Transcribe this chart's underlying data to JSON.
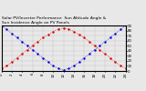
{
  "title_line1": "Solar PV/Inverter Performance  Sun Altitude Angle &",
  "title_line2": "Sun Incidence Angle on PV Panels",
  "x_values": [
    0,
    1,
    2,
    3,
    4,
    5,
    6,
    7,
    8,
    9,
    10,
    11,
    12,
    13,
    14,
    15,
    16,
    17,
    18,
    19,
    20,
    21,
    22,
    23,
    24
  ],
  "blue_values": [
    90,
    82,
    74,
    66,
    58,
    50,
    42,
    34,
    26,
    18,
    10,
    5,
    2,
    5,
    10,
    18,
    26,
    34,
    42,
    50,
    58,
    66,
    74,
    82,
    90
  ],
  "red_values": [
    5,
    10,
    18,
    26,
    34,
    42,
    50,
    58,
    66,
    72,
    78,
    83,
    85,
    83,
    78,
    72,
    66,
    58,
    50,
    42,
    34,
    26,
    18,
    10,
    5
  ],
  "blue_color": "#0000dd",
  "red_color": "#dd0000",
  "background_color": "#e8e8e8",
  "grid_color": "#999999",
  "ylim": [
    0,
    90
  ],
  "xlim": [
    0,
    24
  ],
  "yticks": [
    0,
    10,
    20,
    30,
    40,
    50,
    60,
    70,
    80,
    90
  ],
  "xtick_vals": [
    0,
    2,
    4,
    6,
    8,
    10,
    12,
    14,
    16,
    18,
    20,
    22,
    24
  ],
  "xtick_labels": [
    "0",
    "2",
    "4",
    "6",
    "8",
    "10",
    "12",
    "14",
    "16",
    "18",
    "20",
    "22",
    "24"
  ],
  "title_fontsize": 3.2,
  "tick_fontsize": 2.8,
  "linewidth": 0.5,
  "marker": ".",
  "markersize": 1.5
}
